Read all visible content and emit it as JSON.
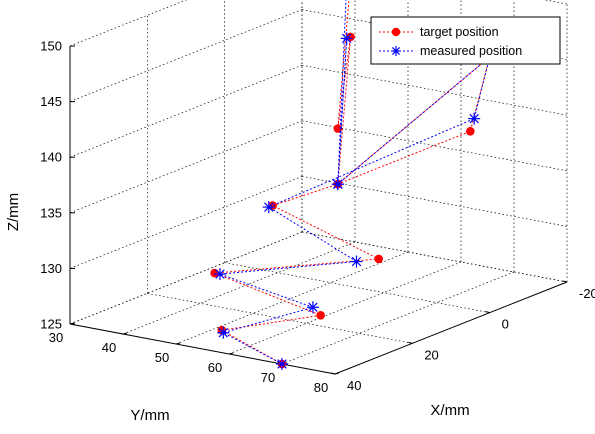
{
  "chart_data": {
    "type": "scatter3d",
    "title": "",
    "xlabel": "X/mm",
    "ylabel": "Y/mm",
    "zlabel": "Z/mm",
    "xlim": [
      -20,
      40
    ],
    "ylim": [
      30,
      80
    ],
    "zlim": [
      125,
      150
    ],
    "x_ticks": [
      -20,
      0,
      20,
      40
    ],
    "y_ticks": [
      30,
      40,
      50,
      60,
      70,
      80
    ],
    "z_ticks": [
      125,
      130,
      135,
      140,
      145,
      150
    ],
    "grid": true,
    "legend_position": "top-right",
    "series": [
      {
        "name": "target position",
        "color": "#ff0000",
        "marker": "filled-circle",
        "line_style": "dotted",
        "points": [
          {
            "x": -12,
            "y": 45,
            "z": 150
          },
          {
            "x": 5,
            "y": 55,
            "z": 140
          },
          {
            "x": -12,
            "y": 45,
            "z": 145
          },
          {
            "x": 5,
            "y": 55,
            "z": 135
          },
          {
            "x": 0,
            "y": 80,
            "z": 148
          },
          {
            "x": 5,
            "y": 80,
            "z": 142
          },
          {
            "x": 5,
            "y": 55,
            "z": 135
          },
          {
            "x": 15,
            "y": 50,
            "z": 134
          },
          {
            "x": 15,
            "y": 70,
            "z": 131
          },
          {
            "x": 30,
            "y": 50,
            "z": 130
          },
          {
            "x": 30,
            "y": 70,
            "z": 128
          },
          {
            "x": 35,
            "y": 55,
            "z": 126
          },
          {
            "x": 40,
            "y": 70,
            "z": 125
          }
        ]
      },
      {
        "name": "measured position",
        "color": "#0000ff",
        "marker": "asterisk",
        "line_style": "dotted",
        "points": [
          {
            "x": -11,
            "y": 45,
            "z": 150
          },
          {
            "x": 5,
            "y": 55,
            "z": 135
          },
          {
            "x": -11,
            "y": 45,
            "z": 145
          },
          {
            "x": 5,
            "y": 55,
            "z": 135
          },
          {
            "x": 0,
            "y": 80,
            "z": 148
          },
          {
            "x": 4,
            "y": 80,
            "z": 143
          },
          {
            "x": 16,
            "y": 50,
            "z": 134
          },
          {
            "x": 18,
            "y": 68,
            "z": 131
          },
          {
            "x": 30,
            "y": 51,
            "z": 130
          },
          {
            "x": 32,
            "y": 70,
            "z": 129
          },
          {
            "x": 36,
            "y": 56,
            "z": 126
          },
          {
            "x": 40,
            "y": 70,
            "z": 125
          }
        ]
      }
    ]
  }
}
